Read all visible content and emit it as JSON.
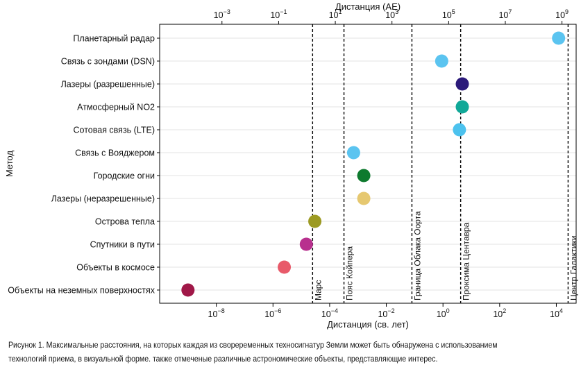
{
  "chart_data": {
    "type": "scatter",
    "orientation": "horizontal-dot",
    "x_scale": "log",
    "xlabel": "Дистанция (св. лет)",
    "xlabel_top": "Дистанция (AE)",
    "ylabel": "Метод",
    "xlim": [
      1e-10,
      50000.0
    ],
    "xticks_bottom": [
      {
        "label": "10",
        "exp": "−8",
        "value": 1e-08
      },
      {
        "label": "10",
        "exp": "−6",
        "value": 1e-06
      },
      {
        "label": "10",
        "exp": "−4",
        "value": 0.0001
      },
      {
        "label": "10",
        "exp": "−2",
        "value": 0.01
      },
      {
        "label": "10",
        "exp": "0",
        "value": 1
      },
      {
        "label": "10",
        "exp": "2",
        "value": 100
      },
      {
        "label": "10",
        "exp": "4",
        "value": 10000
      }
    ],
    "xticks_top": [
      {
        "label": "10",
        "exp": "−3",
        "value_au": 0.001
      },
      {
        "label": "10",
        "exp": "−1",
        "value_au": 0.1
      },
      {
        "label": "10",
        "exp": "1",
        "value_au": 10
      },
      {
        "label": "10",
        "exp": "3",
        "value_au": 1000
      },
      {
        "label": "10",
        "exp": "5",
        "value_au": 100000.0
      },
      {
        "label": "10",
        "exp": "7",
        "value_au": 10000000.0
      },
      {
        "label": "10",
        "exp": "9",
        "value_au": 1000000000.0
      }
    ],
    "grid": "horizontal",
    "categories": [
      "Планетарный радар",
      "Связь с зондами (DSN)",
      "Лазеры (разрешенные)",
      "Атмосферный NO2",
      "Сотовая связь (LTE)",
      "Связь с Вояджером",
      "Городские огни",
      "Лазеры (неразрешенные)",
      "Острова тепла",
      "Спутники в пути",
      "Объекты в космосе",
      "Объекты на неземных поверхностях"
    ],
    "points": [
      {
        "category": "Планетарный радар",
        "x": 12000,
        "color": "#5bc4f0"
      },
      {
        "category": "Связь с зондами (DSN)",
        "x": 0.9,
        "color": "#5bc4f0"
      },
      {
        "category": "Лазеры (разрешенные)",
        "x": 4.8,
        "color": "#2b1a7a"
      },
      {
        "category": "Атмосферный NO2",
        "x": 4.8,
        "color": "#10a898"
      },
      {
        "category": "Сотовая связь (LTE)",
        "x": 3.8,
        "color": "#4cc2ee"
      },
      {
        "category": "Связь с Вояджером",
        "x": 0.0007,
        "color": "#5bc4f0"
      },
      {
        "category": "Городские огни",
        "x": 0.0016,
        "color": "#0e7a2e"
      },
      {
        "category": "Лазеры (неразрешенные)",
        "x": 0.0016,
        "color": "#e6c870"
      },
      {
        "category": "Острова тепла",
        "x": 3e-05,
        "color": "#9c9a22"
      },
      {
        "category": "Спутники в пути",
        "x": 1.5e-05,
        "color": "#b8308e"
      },
      {
        "category": "Объекты в космосе",
        "x": 2.5e-06,
        "color": "#e85a6a"
      },
      {
        "category": "Объекты на неземных поверхностях",
        "x": 1e-09,
        "color": "#a01848"
      }
    ],
    "reference_lines": [
      {
        "label": "Марс",
        "x": 2.5e-05
      },
      {
        "label": "Пояс Койпера",
        "x": 0.00032
      },
      {
        "label": "Граница Облака Oорта",
        "x": 0.08
      },
      {
        "label": "Проксима Центавра",
        "x": 4.2
      },
      {
        "label": "Центр Галактики",
        "x": 26000
      }
    ]
  },
  "caption": {
    "line1": "Рисунок 1. Максимальные расстояния, на которых каждая из свореременных техносигнатур Земли может быть обнаружена с использованием",
    "line2": "технологий приема, в визуальной форме. также отмеченые различные астрономические объекты, представляющие интерес."
  }
}
